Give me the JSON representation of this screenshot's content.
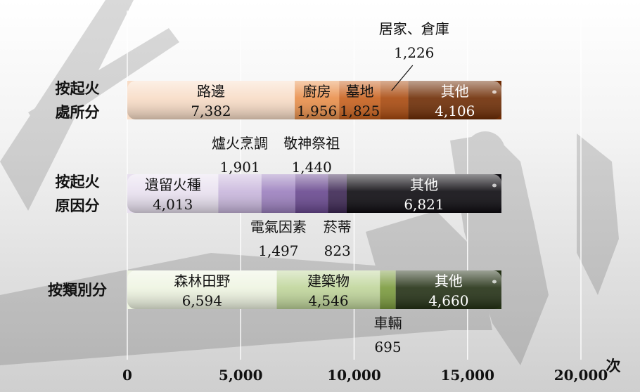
{
  "chart_data": {
    "type": "bar",
    "orientation": "horizontal",
    "stacked": true,
    "unit": "次",
    "xlim": [
      0,
      20000
    ],
    "x_ticks": [
      "0",
      "5,000",
      "10,000",
      "15,000",
      "20,000"
    ],
    "grid": true,
    "rows": [
      {
        "category": "按起火處所分",
        "category_lines": [
          "按起火",
          "處所分"
        ],
        "segments": [
          {
            "name": "路邊",
            "value": 7382,
            "value_label": "7,382",
            "color": "#f8dcc6",
            "label_pos": "inside"
          },
          {
            "name": "廚房",
            "value": 1956,
            "value_label": "1,956",
            "color": "#e98f4a",
            "label_pos": "inside"
          },
          {
            "name": "墓地",
            "value": 1825,
            "value_label": "1,825",
            "color": "#c8601c",
            "label_pos": "inside"
          },
          {
            "name": "居家、倉庫",
            "value": 1226,
            "value_label": "1,226",
            "color": "#a9490d",
            "label_pos": "above-leader"
          },
          {
            "name": "其他",
            "value": 4106,
            "value_label": "4,106",
            "color": "#6e2c04",
            "label_pos": "inside"
          }
        ]
      },
      {
        "category": "按起火原因分",
        "category_lines": [
          "按起火",
          "原因分"
        ],
        "segments": [
          {
            "name": "遺留火種",
            "value": 4013,
            "value_label": "4,013",
            "color": "#e8e0ef",
            "label_pos": "inside"
          },
          {
            "name": "爐火烹調",
            "value": 1901,
            "value_label": "1,901",
            "color": "#c8b6dc",
            "label_pos": "above"
          },
          {
            "name": "電氣因素",
            "value": 1497,
            "value_label": "1,497",
            "color": "#9b7fbe",
            "label_pos": "below"
          },
          {
            "name": "敬神祭祖",
            "value": 1440,
            "value_label": "1,440",
            "color": "#68478f",
            "label_pos": "above"
          },
          {
            "name": "菸蒂",
            "value": 823,
            "value_label": "823",
            "color": "#3c2653",
            "label_pos": "below"
          },
          {
            "name": "其他",
            "value": 6821,
            "value_label": "6,821",
            "color": "#0c0a0f",
            "label_pos": "inside"
          }
        ]
      },
      {
        "category": "按類別分",
        "category_lines": [
          "按類別分"
        ],
        "segments": [
          {
            "name": "森林田野",
            "value": 6594,
            "value_label": "6,594",
            "color": "#eef4e1",
            "label_pos": "inside"
          },
          {
            "name": "建築物",
            "value": 4546,
            "value_label": "4,546",
            "color": "#bfd59a",
            "label_pos": "inside"
          },
          {
            "name": "車輛",
            "value": 695,
            "value_label": "695",
            "color": "#7a9a3c",
            "label_pos": "below"
          },
          {
            "name": "其他",
            "value": 4660,
            "value_label": "4,660",
            "color": "#233014",
            "label_pos": "inside"
          }
        ]
      }
    ]
  }
}
